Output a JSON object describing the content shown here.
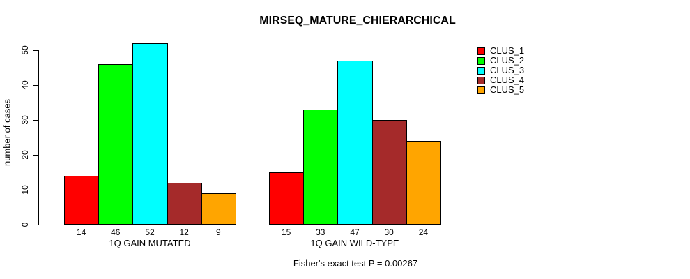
{
  "chart_data": {
    "type": "bar",
    "title": "MIRSEQ_MATURE_CHIERARCHICAL",
    "ylabel": "number of cases",
    "xlabel": "",
    "yticks": [
      0,
      10,
      20,
      30,
      40,
      50
    ],
    "ylim": [
      0,
      52
    ],
    "grid": false,
    "legend_position": "top-right",
    "bar_value_labels": true,
    "categories": [
      "1Q GAIN MUTATED",
      "1Q GAIN WILD-TYPE"
    ],
    "series": [
      {
        "name": "CLUS_1",
        "color": "#FF0000",
        "values": [
          14,
          15
        ]
      },
      {
        "name": "CLUS_2",
        "color": "#00FF00",
        "values": [
          46,
          33
        ]
      },
      {
        "name": "CLUS_3",
        "color": "#00FFFF",
        "values": [
          52,
          47
        ]
      },
      {
        "name": "CLUS_4",
        "color": "#A52A2A",
        "values": [
          12,
          30
        ]
      },
      {
        "name": "CLUS_5",
        "color": "#FFA500",
        "values": [
          9,
          24
        ]
      }
    ],
    "annotation": "Fisher's exact test P = 0.00267"
  },
  "colors": {
    "background": "#FFFFFF",
    "axis": "#000000",
    "text": "#000000"
  }
}
